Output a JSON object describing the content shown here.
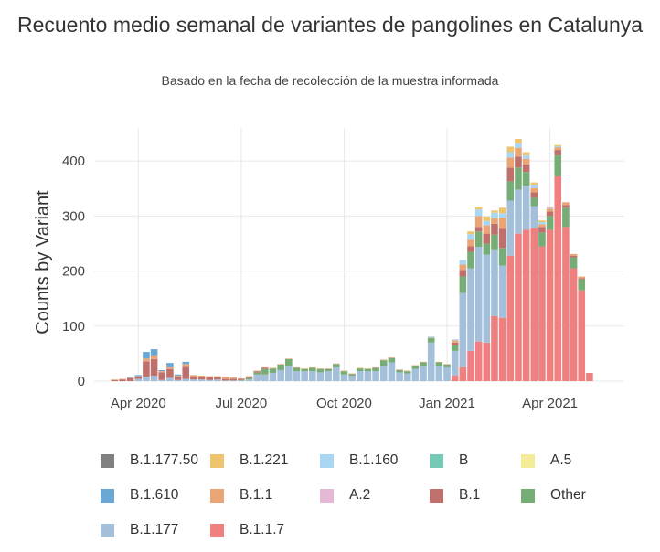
{
  "chart_data": {
    "type": "bar",
    "stacked": true,
    "title": "Recuento medio semanal de variantes de pangolines en Catalunya",
    "subtitle": "Basado en la fecha de recolección de la muestra informada",
    "xlabel": "",
    "ylabel": "Counts by Variant",
    "ylim": [
      0,
      460
    ],
    "yticks": [
      0,
      100,
      200,
      300,
      400
    ],
    "xticks": [
      {
        "label": "Apr 2020",
        "week": 3
      },
      {
        "label": "Jul 2020",
        "week": 16
      },
      {
        "label": "Oct 2020",
        "week": 29
      },
      {
        "label": "Jan 2021",
        "week": 42
      },
      {
        "label": "Apr 2021",
        "week": 55
      }
    ],
    "grid": true,
    "legend_position": "bottom",
    "series": [
      {
        "name": "B.1.1.7",
        "color": "#f08080",
        "values": [
          0,
          0,
          0,
          0,
          0,
          0,
          0,
          0,
          0,
          0,
          0,
          0,
          0,
          0,
          0,
          0,
          0,
          0,
          0,
          0,
          0,
          0,
          0,
          0,
          0,
          0,
          0,
          0,
          0,
          0,
          0,
          0,
          0,
          0,
          0,
          0,
          0,
          0,
          0,
          0,
          0,
          0,
          0,
          10,
          25,
          55,
          72,
          70,
          118,
          115,
          228,
          268,
          275,
          278,
          245,
          275,
          372,
          280,
          205,
          165,
          15
        ]
      },
      {
        "name": "B.1.177",
        "color": "#a3bfd9",
        "values": [
          0,
          0,
          0,
          4,
          8,
          10,
          2,
          6,
          2,
          4,
          3,
          3,
          2,
          3,
          1,
          1,
          1,
          3,
          12,
          12,
          15,
          20,
          28,
          18,
          18,
          18,
          16,
          18,
          25,
          12,
          10,
          18,
          18,
          18,
          28,
          34,
          16,
          14,
          22,
          28,
          70,
          28,
          25,
          45,
          135,
          150,
          172,
          160,
          120,
          95,
          100,
          80,
          80,
          40,
          0,
          0,
          0,
          0,
          0,
          0,
          0
        ]
      },
      {
        "name": "Other",
        "color": "#76ad76",
        "values": [
          0,
          0,
          0,
          0,
          0,
          0,
          0,
          0,
          0,
          0,
          0,
          0,
          0,
          0,
          0,
          0,
          1,
          3,
          4,
          10,
          8,
          10,
          12,
          6,
          4,
          6,
          6,
          4,
          6,
          6,
          3,
          5,
          4,
          6,
          10,
          8,
          4,
          4,
          6,
          6,
          8,
          6,
          5,
          10,
          30,
          30,
          28,
          20,
          28,
          32,
          35,
          40,
          25,
          15,
          25,
          25,
          38,
          35,
          20,
          20,
          0
        ]
      },
      {
        "name": "B.1",
        "color": "#c0706c",
        "values": [
          2,
          3,
          5,
          4,
          28,
          30,
          14,
          16,
          6,
          22,
          6,
          5,
          5,
          4,
          3,
          3,
          2,
          2,
          2,
          2,
          0,
          0,
          0,
          0,
          0,
          0,
          0,
          0,
          0,
          0,
          0,
          0,
          0,
          0,
          0,
          0,
          0,
          0,
          0,
          0,
          0,
          0,
          0,
          5,
          12,
          10,
          8,
          18,
          20,
          35,
          25,
          20,
          14,
          10,
          10,
          8,
          10,
          5,
          3,
          2,
          0
        ]
      },
      {
        "name": "B.1.1",
        "color": "#e9a576",
        "values": [
          1,
          1,
          1,
          1,
          5,
          7,
          2,
          3,
          2,
          5,
          2,
          2,
          2,
          2,
          4,
          3,
          1,
          1,
          1,
          1,
          1,
          1,
          1,
          1,
          1,
          1,
          1,
          1,
          1,
          1,
          1,
          1,
          1,
          1,
          1,
          1,
          1,
          1,
          1,
          1,
          1,
          1,
          1,
          4,
          10,
          12,
          20,
          15,
          10,
          20,
          18,
          16,
          10,
          8,
          5,
          5,
          5,
          5,
          3,
          3,
          0
        ]
      },
      {
        "name": "B.1.610",
        "color": "#6aa7d5",
        "values": [
          0,
          0,
          1,
          2,
          12,
          11,
          2,
          8,
          2,
          4,
          0,
          0,
          0,
          0,
          0,
          0,
          0,
          0,
          0,
          0,
          0,
          0,
          0,
          0,
          0,
          0,
          0,
          0,
          0,
          0,
          0,
          0,
          0,
          0,
          0,
          0,
          0,
          0,
          0,
          0,
          0,
          0,
          0,
          0,
          0,
          0,
          0,
          0,
          0,
          0,
          0,
          0,
          0,
          0,
          0,
          0,
          0,
          0,
          0,
          0,
          0
        ]
      },
      {
        "name": "B.1.160",
        "color": "#a9d6f3",
        "values": [
          0,
          0,
          0,
          0,
          0,
          0,
          0,
          0,
          0,
          0,
          0,
          0,
          0,
          0,
          0,
          0,
          0,
          0,
          0,
          0,
          0,
          0,
          0,
          0,
          0,
          0,
          0,
          0,
          0,
          0,
          0,
          0,
          0,
          0,
          0,
          0,
          0,
          0,
          0,
          0,
          2,
          0,
          0,
          2,
          8,
          10,
          12,
          8,
          10,
          8,
          10,
          8,
          6,
          6,
          4,
          2,
          2,
          0,
          0,
          0,
          0
        ]
      },
      {
        "name": "B.1.221",
        "color": "#eec46e",
        "values": [
          0,
          0,
          0,
          0,
          0,
          0,
          0,
          0,
          0,
          0,
          0,
          0,
          0,
          0,
          0,
          0,
          0,
          0,
          0,
          0,
          0,
          0,
          0,
          0,
          0,
          0,
          0,
          0,
          0,
          0,
          0,
          0,
          0,
          0,
          0,
          0,
          0,
          0,
          0,
          0,
          0,
          0,
          0,
          0,
          0,
          5,
          5,
          8,
          4,
          10,
          10,
          8,
          6,
          4,
          3,
          2,
          2,
          0,
          0,
          0,
          0
        ]
      },
      {
        "name": "A.5",
        "color": "#f5ec9a",
        "values": []
      },
      {
        "name": "B",
        "color": "#76c9b4",
        "values": []
      },
      {
        "name": "A.2",
        "color": "#e5b9d6",
        "values": []
      },
      {
        "name": "B.1.177.50",
        "color": "#808080",
        "values": []
      }
    ],
    "legend_order": [
      "B.1.177.50",
      "B.1.221",
      "B.1.160",
      "B",
      "A.5",
      "B.1.610",
      "B.1.1",
      "A.2",
      "B.1",
      "Other",
      "B.1.177",
      "B.1.1.7"
    ]
  }
}
